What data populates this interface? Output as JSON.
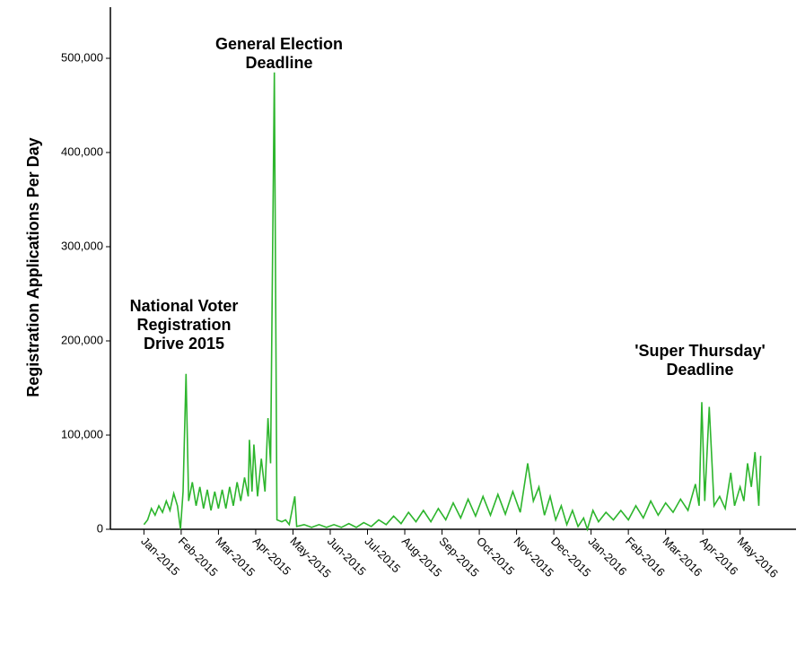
{
  "chart_data": {
    "type": "line",
    "y_label": "Registration Applications Per Day",
    "annotations": [
      {
        "lines": [
          "National Voter",
          "Registration",
          "Drive 2015"
        ]
      },
      {
        "lines": [
          "General Election",
          "Deadline"
        ]
      },
      {
        "lines": [
          "'Super Thursday'",
          "Deadline"
        ]
      }
    ],
    "xlim": [
      -0.9,
      17.5
    ],
    "xticks": [
      {
        "value": 0,
        "label": "Jan-2015"
      },
      {
        "value": 1,
        "label": "Feb-2015"
      },
      {
        "value": 2,
        "label": "Mar-2015"
      },
      {
        "value": 3,
        "label": "Apr-2015"
      },
      {
        "value": 4,
        "label": "May-2015"
      },
      {
        "value": 5,
        "label": "Jun-2015"
      },
      {
        "value": 6,
        "label": "Jul-2015"
      },
      {
        "value": 7,
        "label": "Aug-2015"
      },
      {
        "value": 8,
        "label": "Sep-2015"
      },
      {
        "value": 9,
        "label": "Oct-2015"
      },
      {
        "value": 10,
        "label": "Nov-2015"
      },
      {
        "value": 11,
        "label": "Dec-2015"
      },
      {
        "value": 12,
        "label": "Jan-2016"
      },
      {
        "value": 13,
        "label": "Feb-2016"
      },
      {
        "value": 14,
        "label": "Mar-2016"
      },
      {
        "value": 15,
        "label": "Apr-2016"
      },
      {
        "value": 16,
        "label": "May-2016"
      }
    ],
    "ylim": [
      0,
      550000
    ],
    "yticks": [
      0,
      {
        "value": 100000,
        "label": "100,000"
      },
      {
        "value": 200000,
        "label": "200,000"
      },
      {
        "value": 300000,
        "label": "300,000"
      },
      {
        "value": 400000,
        "label": "400,000"
      },
      {
        "value": 500000,
        "label": "500,000"
      }
    ],
    "color": "#2db52d",
    "x": [
      0,
      0.1,
      0.2,
      0.3,
      0.4,
      0.5,
      0.6,
      0.7,
      0.8,
      0.9,
      0.98,
      1.05,
      1.13,
      1.2,
      1.3,
      1.4,
      1.5,
      1.6,
      1.7,
      1.8,
      1.9,
      2.0,
      2.1,
      2.2,
      2.3,
      2.4,
      2.5,
      2.6,
      2.7,
      2.8,
      2.83,
      2.9,
      2.95,
      3.05,
      3.15,
      3.25,
      3.33,
      3.4,
      3.5,
      3.57,
      3.7,
      3.8,
      3.9,
      4.05,
      4.1,
      4.3,
      4.5,
      4.7,
      4.9,
      5.1,
      5.3,
      5.5,
      5.7,
      5.9,
      6.1,
      6.3,
      6.5,
      6.7,
      6.9,
      7.1,
      7.3,
      7.5,
      7.7,
      7.9,
      8.1,
      8.3,
      8.5,
      8.7,
      8.9,
      9.1,
      9.3,
      9.5,
      9.7,
      9.9,
      10.1,
      10.3,
      10.45,
      10.6,
      10.75,
      10.9,
      11.05,
      11.2,
      11.35,
      11.5,
      11.65,
      11.8,
      11.9,
      12.05,
      12.2,
      12.4,
      12.6,
      12.8,
      13.0,
      13.2,
      13.4,
      13.6,
      13.8,
      14.0,
      14.2,
      14.4,
      14.6,
      14.8,
      14.9,
      14.97,
      15.05,
      15.17,
      15.3,
      15.45,
      15.6,
      15.75,
      15.85,
      16.0,
      16.1,
      16.2,
      16.3,
      16.4,
      16.5,
      16.55
    ],
    "values": [
      5000,
      10000,
      22000,
      15000,
      25000,
      18000,
      30000,
      20000,
      38000,
      25000,
      0,
      40000,
      165000,
      30000,
      50000,
      25000,
      45000,
      22000,
      42000,
      20000,
      40000,
      22000,
      42000,
      22000,
      45000,
      25000,
      50000,
      30000,
      55000,
      35000,
      95000,
      40000,
      90000,
      35000,
      75000,
      40000,
      118000,
      70000,
      485000,
      10000,
      8000,
      10000,
      5000,
      35000,
      3000,
      5000,
      2000,
      5000,
      2000,
      5000,
      2000,
      6000,
      2000,
      7000,
      3000,
      10000,
      5000,
      14000,
      6000,
      18000,
      8000,
      20000,
      8000,
      22000,
      10000,
      28000,
      12000,
      32000,
      14000,
      35000,
      15000,
      37000,
      16000,
      40000,
      18000,
      70000,
      30000,
      45000,
      15000,
      35000,
      10000,
      25000,
      5000,
      20000,
      3000,
      12000,
      0,
      20000,
      8000,
      18000,
      10000,
      20000,
      10000,
      25000,
      12000,
      30000,
      15000,
      28000,
      18000,
      32000,
      20000,
      48000,
      25000,
      135000,
      30000,
      130000,
      25000,
      35000,
      22000,
      60000,
      25000,
      45000,
      30000,
      70000,
      45000,
      82000,
      25000,
      78000
    ]
  }
}
